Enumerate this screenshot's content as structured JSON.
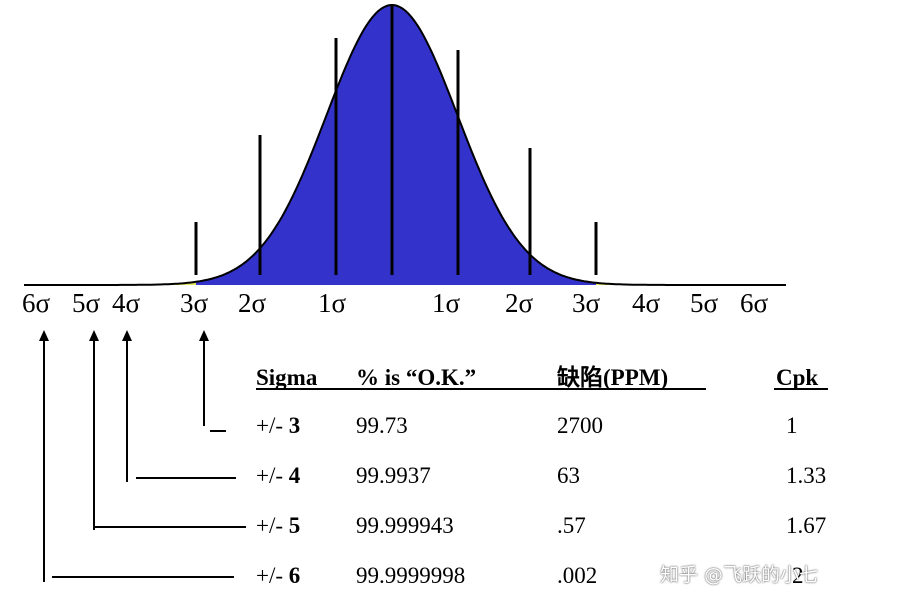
{
  "colors": {
    "center_fill": "#3333cc",
    "band_3_4": "#e8e85a",
    "band_4_5": "#1fcc99",
    "band_5_6": "#f0b066",
    "line": "#000000"
  },
  "sigma_axis": {
    "left_labels": [
      "6σ",
      "5σ",
      "4σ",
      "3σ",
      "2σ",
      "1σ"
    ],
    "right_labels": [
      "1σ",
      "2σ",
      "3σ",
      "4σ",
      "5σ",
      "6σ"
    ]
  },
  "table": {
    "headers": {
      "sigma": "Sigma",
      "ok": "% is “O.K.”",
      "ppm": "缺陷(PPM)",
      "cpk": "Cpk"
    },
    "rows": [
      {
        "prefix": "+/- ",
        "level": "3",
        "ok": "99.73",
        "ppm": "2700",
        "cpk": "1"
      },
      {
        "prefix": "+/- ",
        "level": "4",
        "ok": "99.9937",
        "ppm": "63",
        "cpk": "1.33"
      },
      {
        "prefix": "+/- ",
        "level": "5",
        "ok": "99.999943",
        "ppm": ".57",
        "cpk": "1.67"
      },
      {
        "prefix": "+/- ",
        "level": "6",
        "ok": "99.9999998",
        "ppm": ".002",
        "cpk": "2"
      }
    ]
  },
  "watermark": "知乎 @飞跃的小七"
}
